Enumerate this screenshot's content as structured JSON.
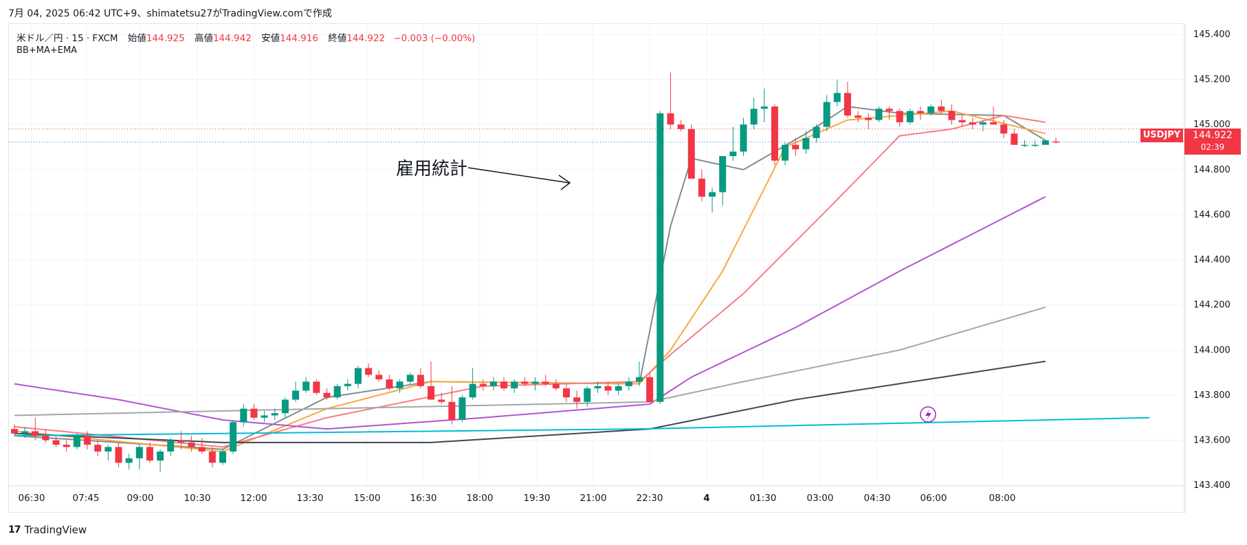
{
  "header": {
    "text": "7月 04, 2025 06:42 UTC+9、shimatetsu27がTradingView.comで作成"
  },
  "legend": {
    "symbol": "米ドル／円 · 15 · FXCM",
    "open_label": "始値",
    "open": "144.925",
    "high_label": "高値",
    "high": "144.942",
    "low_label": "安値",
    "low": "144.916",
    "close_label": "終値",
    "close": "144.922",
    "change": "−0.003 (−0.00%)"
  },
  "indicator": "BB+MA+EMA",
  "annotation": "雇用統計",
  "price_tag": {
    "symbol": "USDJPY",
    "price": "144.922",
    "countdown": "02:39"
  },
  "footer": {
    "logo": "17",
    "brand": "TradingView"
  },
  "colors": {
    "up": "#089981",
    "down": "#f23645",
    "ma_gray": "#868993",
    "ema_orange": "#f6a93b",
    "ema_red": "#f77c80",
    "ema_purple": "#b054d1",
    "ma_lightgray": "#a6a6a6",
    "ma_dark": "#434651",
    "ma_cyan": "#00bcd4"
  },
  "chart_data": {
    "type": "candlestick",
    "y_ticks": [
      "145.400",
      "145.200",
      "145.000",
      "144.800",
      "144.600",
      "144.400",
      "144.200",
      "144.000",
      "143.800",
      "143.600",
      "143.400"
    ],
    "x_ticks": [
      "06:30",
      "07:45",
      "09:00",
      "10:30",
      "12:00",
      "13:30",
      "15:00",
      "16:30",
      "18:00",
      "19:30",
      "21:00",
      "22:30",
      "4",
      "01:30",
      "03:00",
      "04:30",
      "06:00",
      "08:00"
    ],
    "ylim": [
      143.3,
      145.47
    ],
    "grid": true,
    "reference_lines": {
      "dotted_red": 144.98,
      "dotted_blue": 144.922
    },
    "candles_ohlc": [
      [
        143.65,
        143.67,
        143.62,
        143.63
      ],
      [
        143.63,
        143.66,
        143.61,
        143.64
      ],
      [
        143.64,
        143.7,
        143.6,
        143.62
      ],
      [
        143.62,
        143.65,
        143.59,
        143.6
      ],
      [
        143.6,
        143.62,
        143.57,
        143.58
      ],
      [
        143.58,
        143.6,
        143.55,
        143.57
      ],
      [
        143.57,
        143.63,
        143.56,
        143.62
      ],
      [
        143.62,
        143.64,
        143.56,
        143.58
      ],
      [
        143.58,
        143.6,
        143.53,
        143.55
      ],
      [
        143.55,
        143.58,
        143.51,
        143.57
      ],
      [
        143.57,
        143.59,
        143.48,
        143.5
      ],
      [
        143.5,
        143.54,
        143.47,
        143.52
      ],
      [
        143.52,
        143.58,
        143.47,
        143.57
      ],
      [
        143.57,
        143.59,
        143.5,
        143.51
      ],
      [
        143.51,
        143.56,
        143.46,
        143.55
      ],
      [
        143.55,
        143.61,
        143.53,
        143.6
      ],
      [
        143.6,
        143.64,
        143.56,
        143.59
      ],
      [
        143.59,
        143.62,
        143.55,
        143.57
      ],
      [
        143.57,
        143.61,
        143.54,
        143.55
      ],
      [
        143.55,
        143.57,
        143.48,
        143.5
      ],
      [
        143.5,
        143.56,
        143.49,
        143.55
      ],
      [
        143.55,
        143.69,
        143.54,
        143.68
      ],
      [
        143.68,
        143.76,
        143.66,
        143.74
      ],
      [
        143.74,
        143.76,
        143.69,
        143.7
      ],
      [
        143.7,
        143.73,
        143.68,
        143.71
      ],
      [
        143.71,
        143.74,
        143.69,
        143.72
      ],
      [
        143.72,
        143.79,
        143.7,
        143.78
      ],
      [
        143.78,
        143.86,
        143.77,
        143.82
      ],
      [
        143.82,
        143.88,
        143.81,
        143.86
      ],
      [
        143.86,
        143.87,
        143.8,
        143.81
      ],
      [
        143.81,
        143.83,
        143.78,
        143.79
      ],
      [
        143.79,
        143.85,
        143.78,
        143.84
      ],
      [
        143.84,
        143.87,
        143.82,
        143.85
      ],
      [
        143.85,
        143.93,
        143.83,
        143.92
      ],
      [
        143.92,
        143.94,
        143.88,
        143.89
      ],
      [
        143.89,
        143.91,
        143.86,
        143.87
      ],
      [
        143.87,
        143.89,
        143.82,
        143.83
      ],
      [
        143.83,
        143.87,
        143.81,
        143.86
      ],
      [
        143.86,
        143.9,
        143.85,
        143.89
      ],
      [
        143.89,
        143.92,
        143.83,
        143.84
      ],
      [
        143.84,
        143.95,
        143.78,
        143.78
      ],
      [
        143.78,
        143.81,
        143.76,
        143.77
      ],
      [
        143.77,
        143.84,
        143.67,
        143.69
      ],
      [
        143.69,
        143.8,
        143.68,
        143.79
      ],
      [
        143.79,
        143.92,
        143.78,
        143.85
      ],
      [
        143.85,
        143.87,
        143.82,
        143.84
      ],
      [
        143.84,
        143.88,
        143.82,
        143.86
      ],
      [
        143.86,
        143.88,
        143.82,
        143.83
      ],
      [
        143.83,
        143.87,
        143.81,
        143.86
      ],
      [
        143.86,
        143.88,
        143.84,
        143.85
      ],
      [
        143.85,
        143.88,
        143.82,
        143.86
      ],
      [
        143.86,
        143.89,
        143.84,
        143.85
      ],
      [
        143.85,
        143.87,
        143.82,
        143.83
      ],
      [
        143.83,
        143.85,
        143.77,
        143.79
      ],
      [
        143.79,
        143.82,
        143.74,
        143.77
      ],
      [
        143.77,
        143.84,
        143.75,
        143.83
      ],
      [
        143.83,
        143.86,
        143.81,
        143.84
      ],
      [
        143.84,
        143.86,
        143.8,
        143.82
      ],
      [
        143.82,
        143.85,
        143.8,
        143.84
      ],
      [
        143.84,
        143.88,
        143.82,
        143.86
      ],
      [
        143.86,
        143.95,
        143.84,
        143.88
      ],
      [
        143.88,
        143.9,
        143.77,
        143.77
      ],
      [
        143.77,
        145.06,
        143.76,
        145.05
      ],
      [
        145.05,
        145.23,
        144.98,
        145.0
      ],
      [
        145.0,
        145.02,
        144.97,
        144.98
      ],
      [
        144.98,
        145.0,
        144.76,
        144.76
      ],
      [
        144.76,
        144.8,
        144.66,
        144.68
      ],
      [
        144.68,
        144.72,
        144.61,
        144.7
      ],
      [
        144.7,
        144.83,
        144.64,
        144.86
      ],
      [
        144.86,
        144.99,
        144.84,
        144.88
      ],
      [
        144.88,
        145.03,
        144.86,
        145.0
      ],
      [
        145.0,
        145.12,
        144.98,
        145.07
      ],
      [
        145.07,
        145.16,
        145.01,
        145.08
      ],
      [
        145.08,
        145.09,
        144.82,
        144.84
      ],
      [
        144.84,
        144.92,
        144.82,
        144.91
      ],
      [
        144.91,
        144.94,
        144.86,
        144.89
      ],
      [
        144.89,
        144.97,
        144.87,
        144.94
      ],
      [
        144.94,
        145.0,
        144.92,
        144.99
      ],
      [
        144.99,
        145.13,
        144.97,
        145.1
      ],
      [
        145.1,
        145.2,
        145.08,
        145.14
      ],
      [
        145.14,
        145.19,
        145.03,
        145.04
      ],
      [
        145.04,
        145.06,
        145.01,
        145.03
      ],
      [
        145.03,
        145.05,
        144.98,
        145.02
      ],
      [
        145.02,
        145.08,
        145.01,
        145.07
      ],
      [
        145.07,
        145.08,
        145.02,
        145.06
      ],
      [
        145.06,
        145.07,
        144.99,
        145.01
      ],
      [
        145.01,
        145.07,
        145.0,
        145.06
      ],
      [
        145.06,
        145.08,
        145.02,
        145.05
      ],
      [
        145.05,
        145.09,
        145.04,
        145.08
      ],
      [
        145.08,
        145.11,
        145.05,
        145.06
      ],
      [
        145.06,
        145.09,
        145.0,
        145.02
      ],
      [
        145.02,
        145.04,
        144.99,
        145.01
      ],
      [
        145.01,
        145.03,
        144.98,
        145.0
      ],
      [
        145.0,
        145.02,
        144.97,
        145.01
      ],
      [
        145.01,
        145.08,
        145.0,
        145.0
      ],
      [
        145.0,
        145.02,
        144.94,
        144.96
      ],
      [
        144.96,
        144.98,
        144.91,
        144.91
      ],
      [
        144.91,
        144.93,
        144.9,
        144.91
      ],
      [
        144.91,
        144.93,
        144.9,
        144.91
      ],
      [
        144.91,
        144.93,
        144.91,
        144.93
      ],
      [
        144.925,
        144.942,
        144.916,
        144.922
      ]
    ],
    "series": [
      {
        "color": "#868993",
        "values_at": [
          [
            0,
            143.62
          ],
          [
            20,
            143.56
          ],
          [
            30,
            143.79
          ],
          [
            40,
            143.86
          ],
          [
            60,
            143.85
          ],
          [
            63,
            144.55
          ],
          [
            65,
            144.85
          ],
          [
            70,
            144.8
          ],
          [
            76,
            144.96
          ],
          [
            80,
            145.08
          ],
          [
            85,
            145.05
          ],
          [
            95,
            145.04
          ],
          [
            99,
            144.93
          ]
        ]
      },
      {
        "color": "#f6a93b",
        "values_at": [
          [
            0,
            143.64
          ],
          [
            20,
            143.55
          ],
          [
            30,
            143.74
          ],
          [
            40,
            143.86
          ],
          [
            60,
            143.85
          ],
          [
            63,
            144.0
          ],
          [
            68,
            144.35
          ],
          [
            74,
            144.9
          ],
          [
            80,
            145.02
          ],
          [
            90,
            145.06
          ],
          [
            99,
            144.96
          ]
        ]
      },
      {
        "color": "#f77c80",
        "values_at": [
          [
            0,
            143.66
          ],
          [
            20,
            143.57
          ],
          [
            30,
            143.7
          ],
          [
            45,
            143.84
          ],
          [
            60,
            143.86
          ],
          [
            63,
            143.98
          ],
          [
            70,
            144.25
          ],
          [
            78,
            144.62
          ],
          [
            85,
            144.95
          ],
          [
            90,
            144.98
          ],
          [
            95,
            145.04
          ],
          [
            99,
            145.01
          ]
        ]
      },
      {
        "color": "#b054d1",
        "values_at": [
          [
            0,
            143.85
          ],
          [
            10,
            143.78
          ],
          [
            20,
            143.69
          ],
          [
            30,
            143.65
          ],
          [
            45,
            143.7
          ],
          [
            61,
            143.76
          ],
          [
            65,
            143.88
          ],
          [
            75,
            144.1
          ],
          [
            85,
            144.35
          ],
          [
            99,
            144.68
          ]
        ]
      },
      {
        "color": "#a6a6a6",
        "values_at": [
          [
            0,
            143.71
          ],
          [
            30,
            143.74
          ],
          [
            61,
            143.77
          ],
          [
            70,
            143.86
          ],
          [
            85,
            144.0
          ],
          [
            99,
            144.19
          ]
        ]
      },
      {
        "color": "#434651",
        "values_at": [
          [
            0,
            143.63
          ],
          [
            20,
            143.59
          ],
          [
            40,
            143.59
          ],
          [
            61,
            143.65
          ],
          [
            75,
            143.78
          ],
          [
            99,
            143.95
          ]
        ]
      },
      {
        "color": "#00bcd4",
        "values_at": [
          [
            0,
            143.62
          ],
          [
            60,
            143.65
          ],
          [
            109,
            143.7
          ]
        ]
      }
    ]
  }
}
